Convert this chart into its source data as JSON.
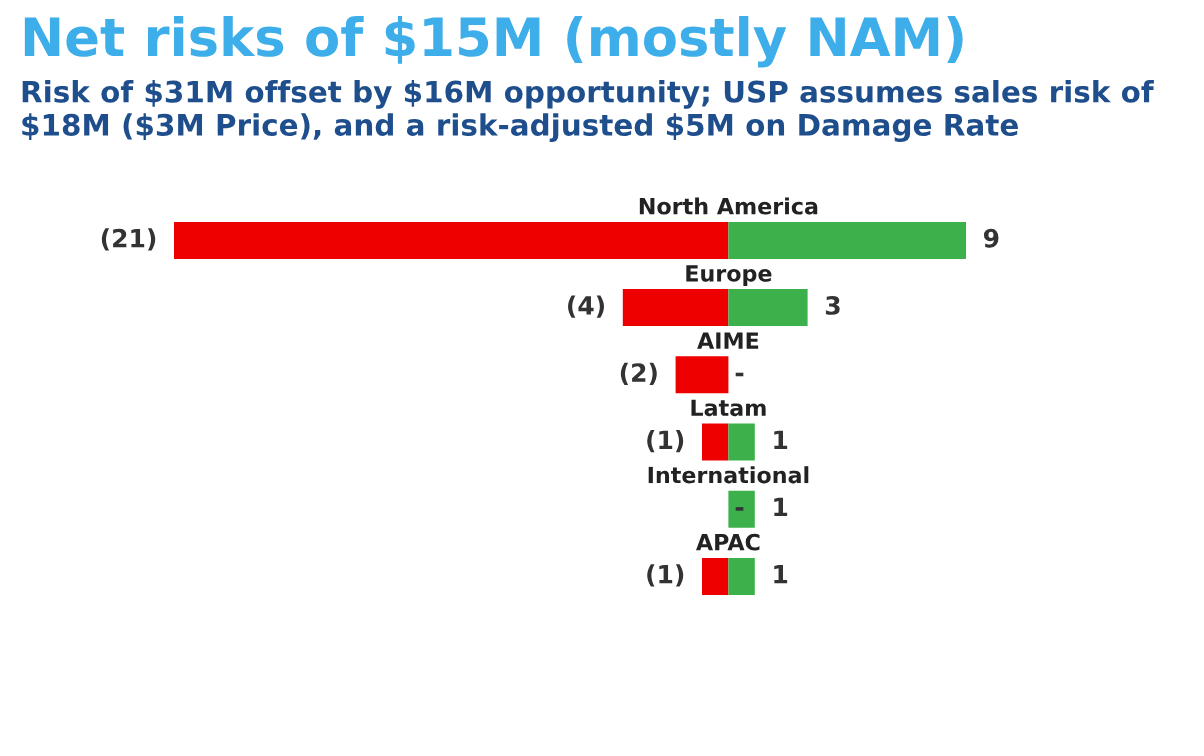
{
  "chart_data": {
    "type": "bar",
    "orientation": "horizontal",
    "title": "Net risks of $15M (mostly NAM)",
    "subtitle": "Risk of $31M offset by $16M opportunity; USP assumes sales risk of $18M ($3M Price), and a risk-adjusted $5M on Damage Rate",
    "categories": [
      "North America",
      "Europe",
      "AIME",
      "Latam",
      "International",
      "APAC"
    ],
    "series": [
      {
        "color": "#ee0000",
        "values": [
          -21,
          -4,
          -2,
          -1,
          0,
          -1
        ],
        "value_labels": [
          "(21)",
          "(4)",
          "(2)",
          "(1)",
          "-",
          "(1)"
        ]
      },
      {
        "color": "#3cb04a",
        "values": [
          9,
          3,
          0,
          1,
          1,
          1
        ],
        "value_labels": [
          "9",
          "3",
          "-",
          "1",
          "1",
          "1"
        ]
      }
    ],
    "stacked": true,
    "tick_labels": false
  }
}
